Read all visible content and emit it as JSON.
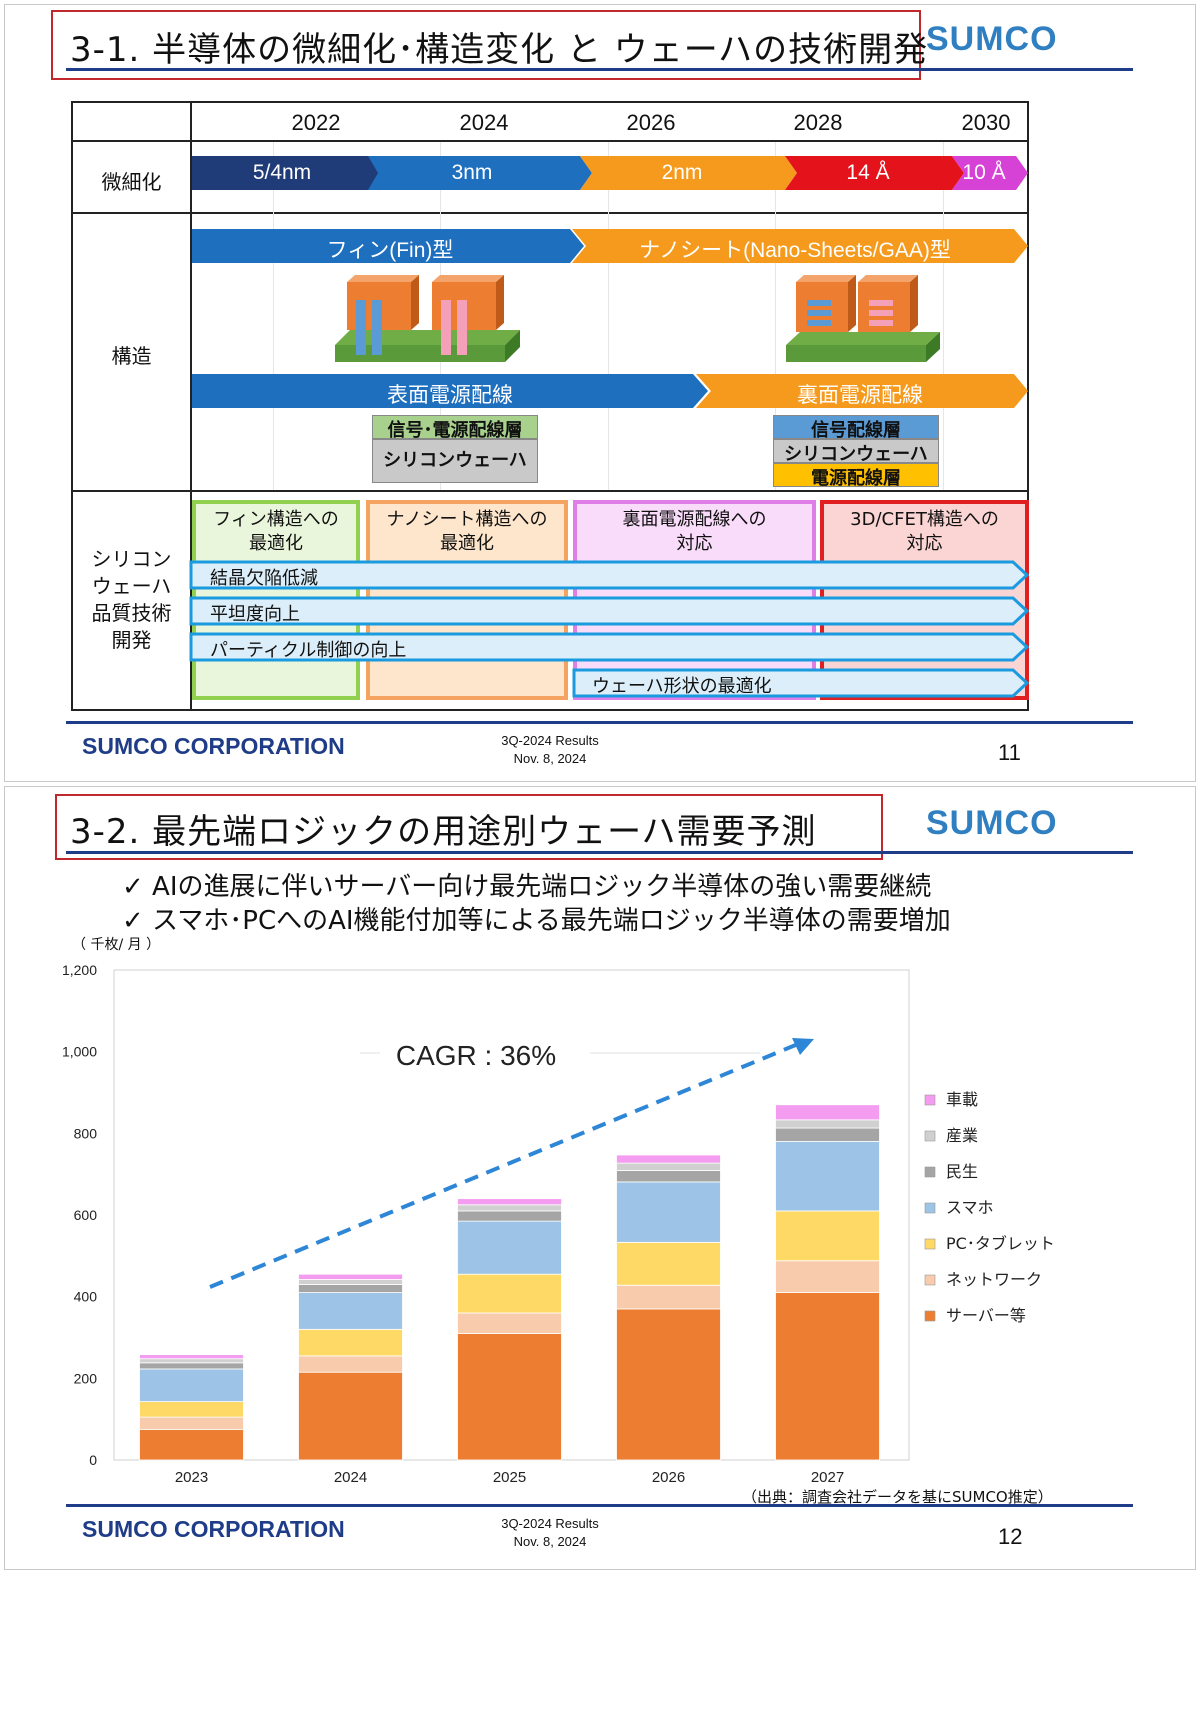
{
  "slide11": {
    "title": "3-1. 半導体の微細化･構造変化 と ウェーハの技術開発",
    "logo": "SUMCO",
    "years": [
      "2022",
      "2024",
      "2026",
      "2028",
      "2030"
    ],
    "rows": {
      "scaling": "微細化",
      "structure": "構造",
      "quality": "シリコン\nウェーハ\n品質技術\n開発"
    },
    "scaling_arrows": [
      "5/4nm",
      "3nm",
      "2nm",
      "14 Å",
      "10 Å"
    ],
    "structure_arrows": [
      "フィン(Fin)型",
      "ナノシート(Nano-Sheets/GAA)型"
    ],
    "power_arrows": [
      "表面電源配線",
      "裏面電源配線"
    ],
    "front_stack": [
      "信号･電源配線層",
      "シリコンウェーハ"
    ],
    "back_stack": [
      "信号配線層",
      "シリコンウェーハ",
      "電源配線層"
    ],
    "panels": [
      {
        "label": "フィン構造への\n最適化",
        "color": "#92d050",
        "bg": "#eaf6dc"
      },
      {
        "label": "ナノシート構造への\n最適化",
        "color": "#f4a460",
        "bg": "#fde6cc"
      },
      {
        "label": "裏面電源配線への\n対応",
        "color": "#e07ee8",
        "bg": "#f9dbfa"
      },
      {
        "label": "3D/CFET構造への\n対応",
        "color": "#e02020",
        "bg": "#fbd4d4"
      }
    ],
    "quality_bars": [
      "結晶欠陥低減",
      "平坦度向上",
      "パーティクル制御の向上",
      "ウェーハ形状の最適化"
    ],
    "footer": {
      "corp": "SUMCO CORPORATION",
      "results": "3Q-2024 Results",
      "date": "Nov. 8, 2024",
      "page": "11"
    }
  },
  "slide12": {
    "title": "3-2. 最先端ロジックの用途別ウェーハ需要予測",
    "logo": "SUMCO",
    "bullets": [
      "✓  AIの進展に伴いサーバー向け最先端ロジック半導体の強い需要継続",
      "✓  スマホ･PCへのAI機能付加等による最先端ロジック半導体の需要増加"
    ],
    "unit": "（ 千枚/ 月 ）",
    "source": "（出典：調査会社データを基にSUMCO推定）",
    "footer": {
      "corp": "SUMCO CORPORATION",
      "results": "3Q-2024 Results",
      "date": "Nov. 8, 2024",
      "page": "12"
    }
  },
  "chart_data": {
    "type": "bar",
    "stacked": true,
    "title": "",
    "ylabel": "（ 千枚/ 月 ）",
    "xlabel": "",
    "ylim": [
      0,
      1200
    ],
    "yticks": [
      0,
      200,
      400,
      600,
      800,
      1000,
      1200
    ],
    "ytick_labels": [
      "0",
      "200",
      "400",
      "600",
      "800",
      "1,000",
      "1,200"
    ],
    "categories": [
      "2023",
      "2024",
      "2025",
      "2026",
      "2027"
    ],
    "annotation": "CAGR : 36%",
    "legend_position": "right",
    "series": [
      {
        "name": "サーバー等",
        "color": "#ed7d31",
        "values": [
          75,
          215,
          310,
          370,
          410
        ]
      },
      {
        "name": "ネットワーク",
        "color": "#f8cbad",
        "values": [
          30,
          40,
          50,
          58,
          78
        ]
      },
      {
        "name": "PC･タブレット",
        "color": "#ffd966",
        "values": [
          38,
          65,
          95,
          105,
          122
        ]
      },
      {
        "name": "スマホ",
        "color": "#9dc3e6",
        "values": [
          80,
          90,
          130,
          148,
          170
        ]
      },
      {
        "name": "民生",
        "color": "#a5a5a5",
        "values": [
          15,
          20,
          25,
          28,
          33
        ]
      },
      {
        "name": "産業",
        "color": "#d0d0d0",
        "values": [
          10,
          12,
          15,
          18,
          20
        ]
      },
      {
        "name": "車載",
        "color": "#f49cf0",
        "values": [
          10,
          13,
          15,
          20,
          37
        ]
      }
    ]
  }
}
